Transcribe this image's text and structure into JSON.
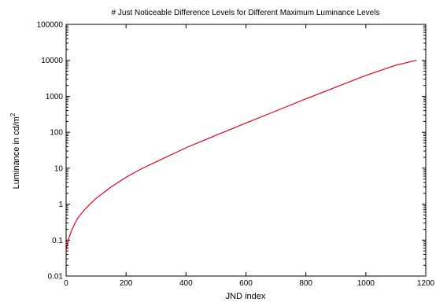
{
  "chart_data": {
    "type": "line",
    "title": "# Just Noticeable Difference Levels for Different Maximum Luminance Levels",
    "xlabel": "JND index",
    "ylabel": "Luminance in cd/m",
    "ylabel_superscript": "2",
    "xlim": [
      0,
      1200
    ],
    "ylim": [
      0.01,
      100000
    ],
    "yscale": "log",
    "grid": false,
    "x_ticks": [
      "0",
      "200",
      "400",
      "600",
      "800",
      "1000",
      "1200"
    ],
    "y_ticks": [
      "0.01",
      "0.1",
      "1",
      "10",
      "100",
      "1000",
      "10000",
      "100000"
    ],
    "series": [
      {
        "color": "#e8001c",
        "x": [
          0,
          5,
          10,
          20,
          30,
          40,
          60,
          80,
          100,
          150,
          200,
          250,
          300,
          400,
          500,
          600,
          700,
          800,
          900,
          1000,
          1100,
          1169
        ],
        "y": [
          0.05,
          0.08,
          0.12,
          0.2,
          0.3,
          0.42,
          0.68,
          1.0,
          1.45,
          3.0,
          5.6,
          9.5,
          15,
          37,
          82,
          180,
          390,
          850,
          1800,
          3800,
          7300,
          10000
        ]
      }
    ]
  }
}
